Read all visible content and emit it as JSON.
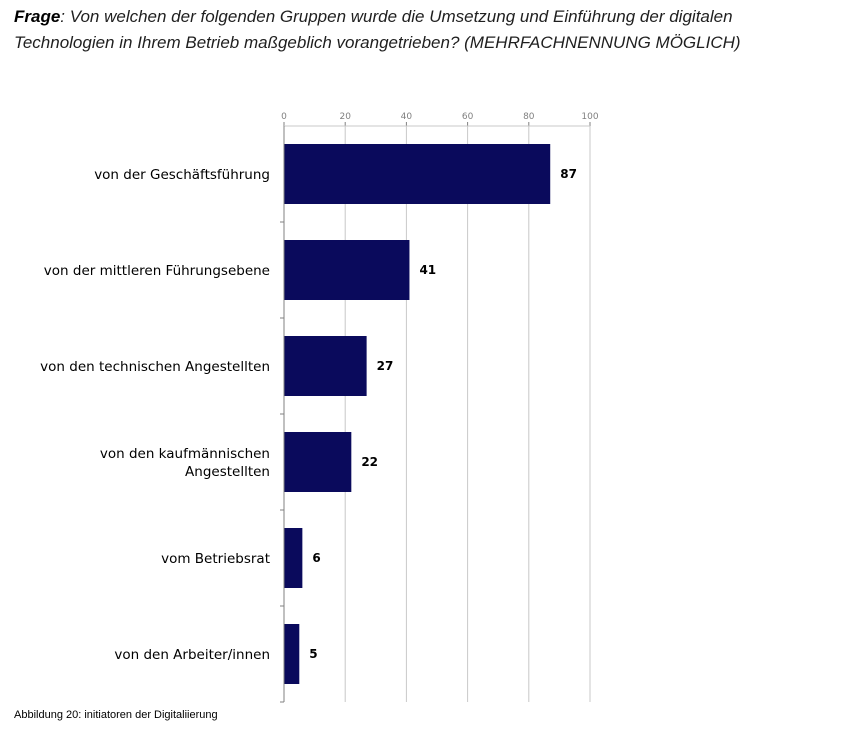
{
  "question": {
    "label": "Frage",
    "text": ": Von welchen der folgenden Gruppen wurde die Umsetzung und Einführung der digitalen Technologien in Ihrem Betrieb maßgeblich vorangetrieben? (MEHRFACHNENNUNG MÖGLICH)"
  },
  "caption": "Abbildung 20: initiatoren der Digitaliierung",
  "colors": {
    "bar": "#0a0a5c",
    "grid": "#c8c8c8",
    "axis": "#808080"
  },
  "chart_data": {
    "type": "bar",
    "orientation": "horizontal",
    "categories": [
      [
        "von der Geschäftsführung"
      ],
      [
        "von der mittleren Führungsebene"
      ],
      [
        "von den technischen Angestellten"
      ],
      [
        "von den kaufmännischen",
        "Angestellten"
      ],
      [
        "vom Betriebsrat"
      ],
      [
        "von den Arbeiter/innen"
      ]
    ],
    "values": [
      87,
      41,
      27,
      22,
      6,
      5
    ],
    "x_ticks": [
      0,
      20,
      40,
      60,
      80,
      100
    ],
    "xlim": [
      0,
      100
    ],
    "x_axis_position": "top",
    "grid": true
  }
}
